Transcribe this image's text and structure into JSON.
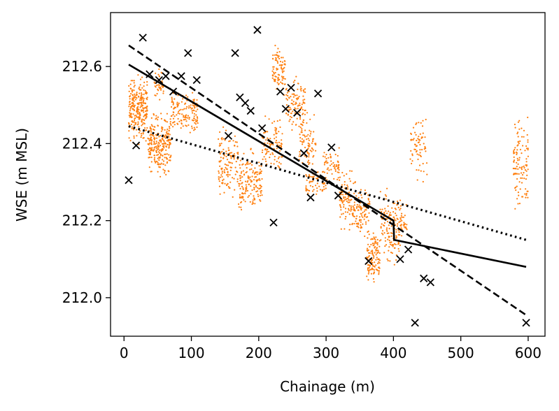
{
  "chart_data": {
    "type": "scatter",
    "title": "",
    "xlabel": "Chainage (m)",
    "ylabel": "WSE (m MSL)",
    "xlim": [
      -20,
      625
    ],
    "ylim": [
      211.9,
      212.74
    ],
    "xticks": [
      0,
      100,
      200,
      300,
      400,
      500,
      600
    ],
    "yticks": [
      212.0,
      212.2,
      212.4,
      212.6
    ],
    "ytick_labels": [
      "212.0",
      "212.2",
      "212.4",
      "212.6"
    ],
    "grid": false,
    "legend": "none",
    "colors": {
      "dense_points": "#ff7f0e",
      "observations": "#000000",
      "lines": "#000000"
    },
    "series": [
      {
        "marker": "dot",
        "color": "#ff7f0e",
        "clusters": [
          {
            "x": [
              7,
              35
            ],
            "y": [
              212.38,
              212.6
            ],
            "n": 260
          },
          {
            "x": [
              35,
              70
            ],
            "y": [
              212.3,
              212.5
            ],
            "n": 260
          },
          {
            "x": [
              45,
              60
            ],
            "y": [
              212.5,
              212.6
            ],
            "n": 40
          },
          {
            "x": [
              70,
              110
            ],
            "y": [
              212.4,
              212.55
            ],
            "n": 140
          },
          {
            "x": [
              140,
              170
            ],
            "y": [
              212.22,
              212.48
            ],
            "n": 130
          },
          {
            "x": [
              170,
              205
            ],
            "y": [
              212.2,
              212.4
            ],
            "n": 160
          },
          {
            "x": [
              205,
              235
            ],
            "y": [
              212.3,
              212.5
            ],
            "n": 100
          },
          {
            "x": [
              220,
              240
            ],
            "y": [
              212.5,
              212.68
            ],
            "n": 90
          },
          {
            "x": [
              240,
              270
            ],
            "y": [
              212.4,
              212.6
            ],
            "n": 110
          },
          {
            "x": [
              260,
              285
            ],
            "y": [
              212.3,
              212.5
            ],
            "n": 80
          },
          {
            "x": [
              270,
              300
            ],
            "y": [
              212.25,
              212.35
            ],
            "n": 60
          },
          {
            "x": [
              295,
              320
            ],
            "y": [
              212.28,
              212.4
            ],
            "n": 60
          },
          {
            "x": [
              320,
              345
            ],
            "y": [
              212.15,
              212.35
            ],
            "n": 110
          },
          {
            "x": [
              345,
              365
            ],
            "y": [
              212.15,
              212.3
            ],
            "n": 80
          },
          {
            "x": [
              360,
              380
            ],
            "y": [
              212.02,
              212.2
            ],
            "n": 130
          },
          {
            "x": [
              380,
              410
            ],
            "y": [
              212.05,
              212.3
            ],
            "n": 140
          },
          {
            "x": [
              410,
              420
            ],
            "y": [
              212.15,
              212.25
            ],
            "n": 30
          },
          {
            "x": [
              425,
              450
            ],
            "y": [
              212.25,
              212.52
            ],
            "n": 70
          },
          {
            "x": [
              578,
              600
            ],
            "y": [
              212.2,
              212.5
            ],
            "n": 110
          }
        ]
      },
      {
        "marker": "x",
        "color": "#000000",
        "points": [
          [
            7,
            212.305
          ],
          [
            18,
            212.395
          ],
          [
            28,
            212.675
          ],
          [
            38,
            212.58
          ],
          [
            52,
            212.565
          ],
          [
            62,
            212.575
          ],
          [
            73,
            212.535
          ],
          [
            85,
            212.575
          ],
          [
            95,
            212.635
          ],
          [
            108,
            212.565
          ],
          [
            155,
            212.42
          ],
          [
            165,
            212.635
          ],
          [
            172,
            212.52
          ],
          [
            180,
            212.505
          ],
          [
            188,
            212.485
          ],
          [
            198,
            212.695
          ],
          [
            205,
            212.44
          ],
          [
            222,
            212.195
          ],
          [
            232,
            212.535
          ],
          [
            240,
            212.49
          ],
          [
            248,
            212.545
          ],
          [
            257,
            212.48
          ],
          [
            267,
            212.375
          ],
          [
            277,
            212.26
          ],
          [
            288,
            212.53
          ],
          [
            308,
            212.39
          ],
          [
            318,
            212.265
          ],
          [
            363,
            212.095
          ],
          [
            410,
            212.1
          ],
          [
            422,
            212.125
          ],
          [
            432,
            211.935
          ],
          [
            445,
            212.05
          ],
          [
            455,
            212.04
          ],
          [
            597,
            211.935
          ]
        ]
      },
      {
        "marker": "line",
        "style": "solid",
        "color": "#000000",
        "x": [
          7,
          400,
          401,
          597
        ],
        "y": [
          212.605,
          212.2,
          212.15,
          212.08
        ]
      },
      {
        "marker": "line",
        "style": "dashed",
        "color": "#000000",
        "x": [
          7,
          597
        ],
        "y": [
          212.655,
          211.955
        ]
      },
      {
        "marker": "line",
        "style": "dotted",
        "color": "#000000",
        "x": [
          7,
          597
        ],
        "y": [
          212.445,
          212.15
        ]
      }
    ]
  }
}
